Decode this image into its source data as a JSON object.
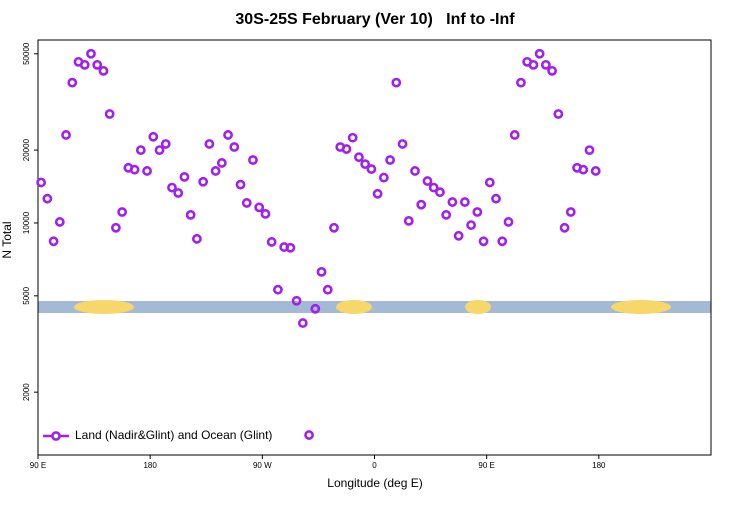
{
  "chart_data": {
    "type": "scatter",
    "title": "30S-25S February (Ver 10)   Inf to -Inf",
    "xlabel": "Longitude (deg E)",
    "ylabel": "N Total",
    "log_y": true,
    "legend": "lower left",
    "xlim": [
      90,
      630
    ],
    "ylim": [
      1100,
      57000
    ],
    "xticks": [
      {
        "value": 90,
        "label": "90 E"
      },
      180,
      {
        "value": 270,
        "label": "90 W"
      },
      {
        "value": 360,
        "label": "0"
      },
      {
        "value": 450,
        "label": "90 E"
      },
      {
        "value": 540,
        "label": "180"
      }
    ],
    "yticks": [
      2000,
      5000,
      10000,
      20000,
      50000
    ],
    "series": [
      {
        "name": "Land (Nadir&Glint) and Ocean (Glint)",
        "color": "#a020f0",
        "x": [
          92.5,
          97.5,
          102.5,
          107.5,
          112.5,
          117.5,
          122.5,
          127.5,
          132.5,
          137.5,
          142.5,
          147.5,
          152.5,
          157.5,
          162.5,
          167.5,
          172.5,
          177.5,
          182.5,
          187.5,
          192.5,
          197.5,
          202.5,
          207.5,
          212.5,
          217.5,
          222.5,
          227.5,
          232.5,
          237.5,
          242.5,
          247.5,
          252.5,
          257.5,
          262.5,
          267.5,
          272.5,
          277.5,
          282.5,
          287.5,
          292.5,
          297.5,
          302.5,
          307.5,
          312.5,
          317.5,
          322.5,
          327.5,
          332.5,
          337.5,
          342.5,
          347.5,
          352.5,
          357.5,
          362.5,
          367.5,
          372.5,
          377.5,
          382.5,
          387.5,
          392.5,
          397.5,
          402.5,
          407.5,
          412.5,
          417.5,
          422.5,
          427.5,
          432.5,
          437.5,
          442.5,
          447.5,
          452.5,
          457.5,
          462.5,
          467.5,
          472.5,
          477.5,
          482.5,
          487.5,
          492.5,
          497.5,
          502.5,
          507.5,
          512.5,
          517.5,
          522.5,
          527.5,
          532.5,
          537.5
        ],
        "values": [
          14700,
          12600,
          8400,
          10100,
          23100,
          38000,
          46300,
          45000,
          50000,
          45000,
          42500,
          28200,
          9550,
          11100,
          16900,
          16600,
          20000,
          16400,
          22700,
          20000,
          21200,
          14000,
          13300,
          15500,
          10800,
          8600,
          14800,
          21200,
          16400,
          17700,
          23100,
          20600,
          14400,
          12100,
          18200,
          11600,
          10900,
          8350,
          5300,
          7950,
          7900,
          4770,
          3860,
          1330,
          4420,
          6280,
          5300,
          9550,
          20600,
          20200,
          22500,
          18700,
          17500,
          16700,
          13200,
          15400,
          18200,
          38000,
          21200,
          10200,
          16400,
          11900,
          14900,
          14000,
          13400,
          10800,
          12200,
          8850,
          12200,
          9800,
          11100,
          8400,
          14700,
          12600,
          8400,
          10100,
          23100,
          38000,
          46300,
          45000,
          50000,
          45000,
          42500,
          28200,
          9550,
          11100,
          16900,
          16600,
          20000,
          16400
        ]
      }
    ]
  }
}
